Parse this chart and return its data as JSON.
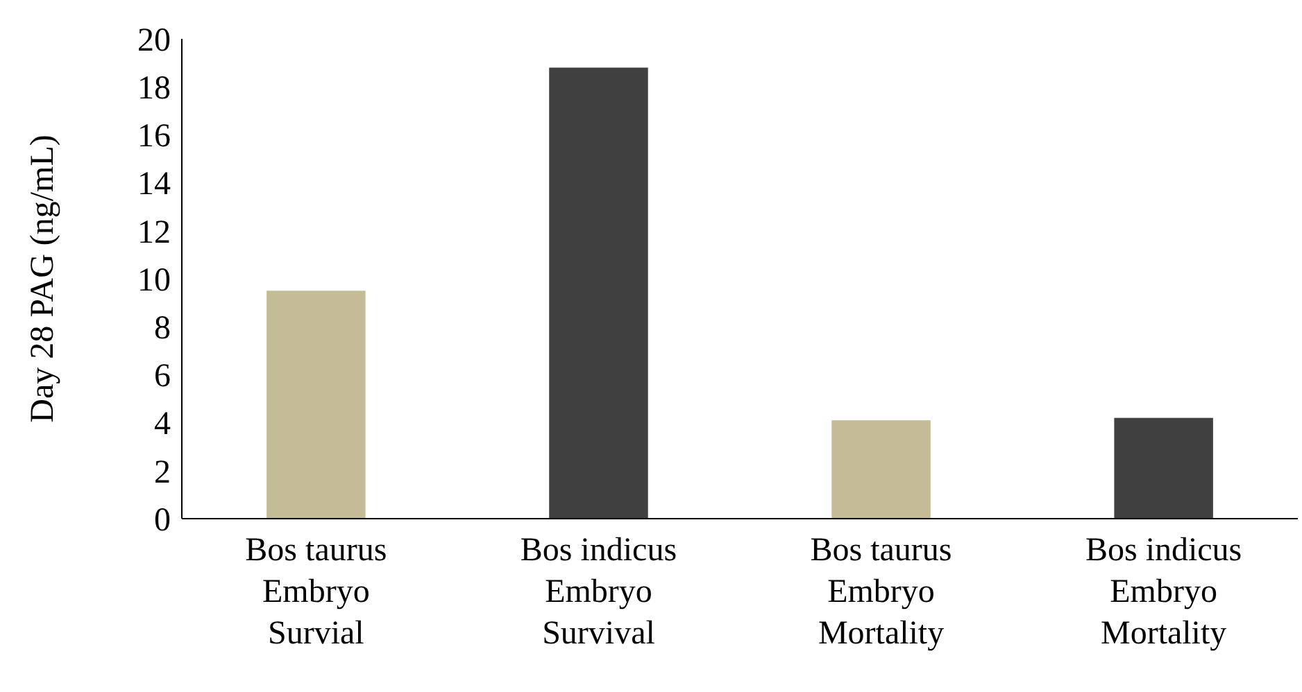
{
  "chart_data": {
    "type": "bar",
    "ylabel": "Day  28  PAG (ng/mL)",
    "categories": [
      "Bos taurus\nEmbryo\nSurvial",
      "Bos indicus\nEmbryo\nSurvival",
      "Bos taurus\nEmbryo\nMortality",
      "Bos indicus\nEmbryo\nMortality"
    ],
    "values": [
      9.5,
      18.8,
      4.1,
      4.2
    ],
    "colors": [
      "#c4bc96",
      "#404040",
      "#c4bc96",
      "#404040"
    ],
    "ylim": [
      0,
      20
    ],
    "yticks": [
      0,
      2,
      4,
      6,
      8,
      10,
      12,
      14,
      16,
      18,
      20
    ],
    "grid": false
  }
}
